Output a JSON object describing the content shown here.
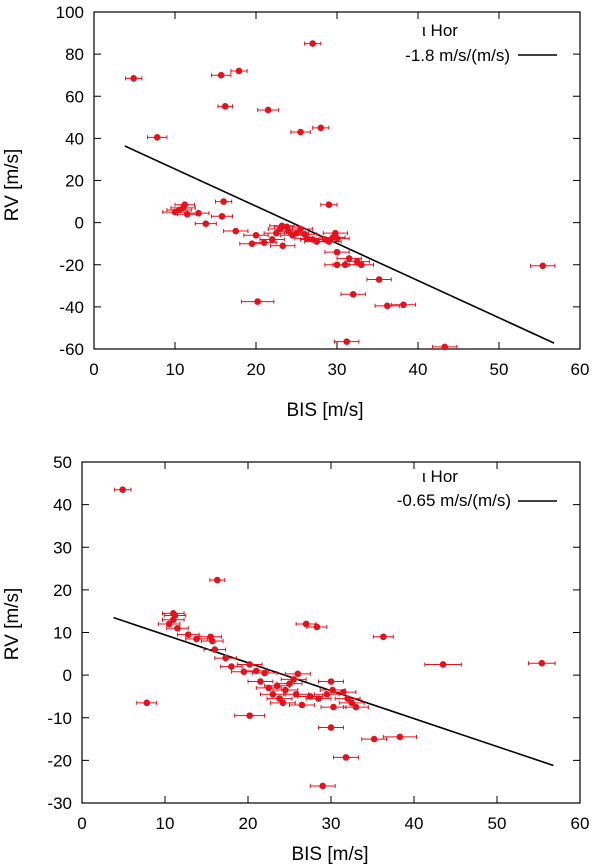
{
  "colors": {
    "points": "#e8101a",
    "fit": "#000000",
    "frame": "#000000"
  },
  "chart_data": [
    {
      "type": "scatter",
      "title": "",
      "xlabel": "BIS [m/s]",
      "ylabel": "RV [m/s]",
      "xlim": [
        0,
        60
      ],
      "ylim": [
        -60,
        100
      ],
      "xticks": [
        0,
        10,
        20,
        30,
        40,
        50,
        60
      ],
      "yticks": [
        -60,
        -40,
        -20,
        0,
        20,
        40,
        60,
        80,
        100
      ],
      "legend": {
        "star": "ι Hor",
        "slope_label": "-1.8 m/s/(m/s)",
        "position": "top-right"
      },
      "fit_line": {
        "x": [
          3.8,
          56.8
        ],
        "y": [
          36.4,
          -57.2
        ]
      },
      "points": [
        {
          "x": 4.9,
          "y": 68.5,
          "xerr": 1.0
        },
        {
          "x": 7.8,
          "y": 40.5,
          "xerr": 1.2
        },
        {
          "x": 15.7,
          "y": 70.0,
          "xerr": 1.2
        },
        {
          "x": 17.9,
          "y": 72.0,
          "xerr": 1.0
        },
        {
          "x": 16.2,
          "y": 55.2,
          "xerr": 0.9
        },
        {
          "x": 21.5,
          "y": 53.5,
          "xerr": 1.3
        },
        {
          "x": 27.0,
          "y": 85.0,
          "xerr": 1.0
        },
        {
          "x": 25.5,
          "y": 43.0,
          "xerr": 1.2
        },
        {
          "x": 28.0,
          "y": 45.0,
          "xerr": 1.0
        },
        {
          "x": 16.0,
          "y": 10.0,
          "xerr": 1.0
        },
        {
          "x": 29.0,
          "y": 8.5,
          "xerr": 1.0
        },
        {
          "x": 10.0,
          "y": 5.0,
          "xerr": 1.5
        },
        {
          "x": 10.5,
          "y": 6.0,
          "xerr": 1.5
        },
        {
          "x": 11.0,
          "y": 7.0,
          "xerr": 1.5
        },
        {
          "x": 11.2,
          "y": 8.5,
          "xerr": 1.2
        },
        {
          "x": 11.5,
          "y": 4.0,
          "xerr": 1.2
        },
        {
          "x": 12.9,
          "y": 4.5,
          "xerr": 1.3
        },
        {
          "x": 13.8,
          "y": -0.5,
          "xerr": 1.3
        },
        {
          "x": 15.8,
          "y": 3.0,
          "xerr": 1.3
        },
        {
          "x": 17.5,
          "y": -4.0,
          "xerr": 1.5
        },
        {
          "x": 19.5,
          "y": -10.0,
          "xerr": 1.5
        },
        {
          "x": 20.0,
          "y": -6.0,
          "xerr": 1.5
        },
        {
          "x": 21.0,
          "y": -9.5,
          "xerr": 1.5
        },
        {
          "x": 22.0,
          "y": -8.0,
          "xerr": 1.5
        },
        {
          "x": 22.5,
          "y": -5.0,
          "xerr": 1.5
        },
        {
          "x": 23.0,
          "y": -3.0,
          "xerr": 1.5
        },
        {
          "x": 23.2,
          "y": -1.5,
          "xerr": 1.5
        },
        {
          "x": 23.8,
          "y": -2.0,
          "xerr": 1.5
        },
        {
          "x": 24.0,
          "y": -4.0,
          "xerr": 1.5
        },
        {
          "x": 24.5,
          "y": -6.0,
          "xerr": 1.5
        },
        {
          "x": 25.0,
          "y": -5.0,
          "xerr": 1.5
        },
        {
          "x": 25.5,
          "y": -3.0,
          "xerr": 1.5
        },
        {
          "x": 26.0,
          "y": -5.5,
          "xerr": 1.5
        },
        {
          "x": 26.3,
          "y": -7.5,
          "xerr": 1.5
        },
        {
          "x": 27.0,
          "y": -8.0,
          "xerr": 1.5
        },
        {
          "x": 27.5,
          "y": -9.0,
          "xerr": 1.5
        },
        {
          "x": 28.5,
          "y": -8.0,
          "xerr": 1.5
        },
        {
          "x": 29.0,
          "y": -9.0,
          "xerr": 1.5
        },
        {
          "x": 29.5,
          "y": -7.0,
          "xerr": 1.5
        },
        {
          "x": 29.8,
          "y": -5.0,
          "xerr": 1.5
        },
        {
          "x": 30.0,
          "y": -7.5,
          "xerr": 1.5
        },
        {
          "x": 23.3,
          "y": -11.0,
          "xerr": 1.5
        },
        {
          "x": 30.0,
          "y": -14.0,
          "xerr": 1.5
        },
        {
          "x": 30.0,
          "y": -20.0,
          "xerr": 1.5
        },
        {
          "x": 31.0,
          "y": -20.0,
          "xerr": 1.5
        },
        {
          "x": 31.5,
          "y": -17.0,
          "xerr": 1.5
        },
        {
          "x": 32.5,
          "y": -18.5,
          "xerr": 1.5
        },
        {
          "x": 33.0,
          "y": -20.0,
          "xerr": 1.5
        },
        {
          "x": 35.2,
          "y": -27.0,
          "xerr": 1.5
        },
        {
          "x": 32.0,
          "y": -34.0,
          "xerr": 1.5
        },
        {
          "x": 36.2,
          "y": -39.5,
          "xerr": 1.5
        },
        {
          "x": 38.2,
          "y": -39.0,
          "xerr": 1.5
        },
        {
          "x": 20.2,
          "y": -37.5,
          "xerr": 2.0
        },
        {
          "x": 31.2,
          "y": -56.5,
          "xerr": 1.5
        },
        {
          "x": 43.3,
          "y": -59.0,
          "xerr": 1.5
        },
        {
          "x": 55.4,
          "y": -20.5,
          "xerr": 1.5
        }
      ]
    },
    {
      "type": "scatter",
      "title": "",
      "xlabel": "BIS [m/s]",
      "ylabel": "RV [m/s]",
      "xlim": [
        0,
        60
      ],
      "ylim": [
        -30,
        50
      ],
      "xticks": [
        0,
        10,
        20,
        30,
        40,
        50,
        60
      ],
      "yticks": [
        -30,
        -20,
        -10,
        0,
        10,
        20,
        30,
        40,
        50
      ],
      "legend": {
        "star": "ι Hor",
        "slope_label": "-0.65 m/s/(m/s)",
        "position": "top-right"
      },
      "fit_line": {
        "x": [
          3.8,
          56.8
        ],
        "y": [
          13.5,
          -21.2
        ]
      },
      "points": [
        {
          "x": 4.9,
          "y": 43.5,
          "xerr": 1.0
        },
        {
          "x": 7.8,
          "y": -6.5,
          "xerr": 1.2
        },
        {
          "x": 16.3,
          "y": 22.3,
          "xerr": 0.9
        },
        {
          "x": 10.5,
          "y": 12.0,
          "xerr": 1.3
        },
        {
          "x": 11.0,
          "y": 14.5,
          "xerr": 1.3
        },
        {
          "x": 11.2,
          "y": 14.0,
          "xerr": 1.3
        },
        {
          "x": 11.0,
          "y": 13.0,
          "xerr": 1.3
        },
        {
          "x": 11.5,
          "y": 11.0,
          "xerr": 1.3
        },
        {
          "x": 12.8,
          "y": 9.5,
          "xerr": 1.3
        },
        {
          "x": 13.8,
          "y": 8.5,
          "xerr": 1.3
        },
        {
          "x": 15.5,
          "y": 9.0,
          "xerr": 1.3
        },
        {
          "x": 15.7,
          "y": 8.0,
          "xerr": 1.3
        },
        {
          "x": 16.0,
          "y": 6.0,
          "xerr": 1.3
        },
        {
          "x": 17.3,
          "y": 4.0,
          "xerr": 1.3
        },
        {
          "x": 18.0,
          "y": 2.0,
          "xerr": 1.3
        },
        {
          "x": 19.5,
          "y": 0.8,
          "xerr": 1.5
        },
        {
          "x": 20.2,
          "y": 2.5,
          "xerr": 1.5
        },
        {
          "x": 21.0,
          "y": 1.0,
          "xerr": 1.5
        },
        {
          "x": 21.5,
          "y": -1.5,
          "xerr": 1.5
        },
        {
          "x": 22.0,
          "y": 0.5,
          "xerr": 1.5
        },
        {
          "x": 22.5,
          "y": -3.0,
          "xerr": 1.5
        },
        {
          "x": 23.0,
          "y": -4.5,
          "xerr": 1.5
        },
        {
          "x": 23.5,
          "y": -2.5,
          "xerr": 1.5
        },
        {
          "x": 23.8,
          "y": -5.5,
          "xerr": 1.5
        },
        {
          "x": 24.2,
          "y": -6.5,
          "xerr": 1.5
        },
        {
          "x": 24.5,
          "y": -3.5,
          "xerr": 1.5
        },
        {
          "x": 25.0,
          "y": -2.0,
          "xerr": 1.5
        },
        {
          "x": 25.5,
          "y": -1.0,
          "xerr": 1.5
        },
        {
          "x": 25.8,
          "y": -4.5,
          "xerr": 1.5
        },
        {
          "x": 26.0,
          "y": 0.3,
          "xerr": 1.5
        },
        {
          "x": 26.5,
          "y": -7.0,
          "xerr": 1.5
        },
        {
          "x": 27.5,
          "y": -5.0,
          "xerr": 1.5
        },
        {
          "x": 28.5,
          "y": -5.5,
          "xerr": 1.5
        },
        {
          "x": 29.5,
          "y": -4.5,
          "xerr": 1.5
        },
        {
          "x": 30.0,
          "y": -1.5,
          "xerr": 1.5
        },
        {
          "x": 30.2,
          "y": -3.5,
          "xerr": 1.5
        },
        {
          "x": 30.3,
          "y": -7.5,
          "xerr": 1.5
        },
        {
          "x": 31.5,
          "y": -4.0,
          "xerr": 1.5
        },
        {
          "x": 32.0,
          "y": -5.5,
          "xerr": 1.5
        },
        {
          "x": 32.5,
          "y": -6.5,
          "xerr": 1.5
        },
        {
          "x": 33.0,
          "y": -7.5,
          "xerr": 1.5
        },
        {
          "x": 27.0,
          "y": 12.0,
          "xerr": 1.2
        },
        {
          "x": 28.3,
          "y": 11.3,
          "xerr": 1.2
        },
        {
          "x": 36.3,
          "y": 9.0,
          "xerr": 1.2
        },
        {
          "x": 20.2,
          "y": -9.5,
          "xerr": 1.8
        },
        {
          "x": 30.0,
          "y": -12.3,
          "xerr": 1.5
        },
        {
          "x": 31.8,
          "y": -19.3,
          "xerr": 1.5
        },
        {
          "x": 35.2,
          "y": -15.0,
          "xerr": 1.5
        },
        {
          "x": 38.3,
          "y": -14.5,
          "xerr": 2.0
        },
        {
          "x": 29.0,
          "y": -26.0,
          "xerr": 1.5
        },
        {
          "x": 43.5,
          "y": 2.5,
          "xerr": 2.2
        },
        {
          "x": 55.4,
          "y": 2.8,
          "xerr": 1.6
        }
      ]
    }
  ]
}
